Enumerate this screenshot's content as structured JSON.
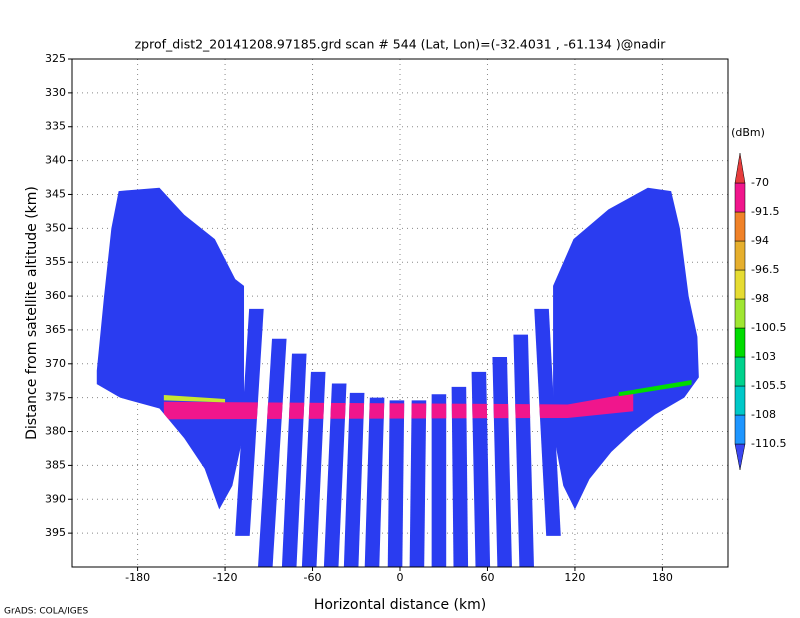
{
  "chart_data": {
    "type": "polygon-field",
    "title": "zprof_dist2_20141208.97185.grd  scan # 544  (Lat, Lon)=(-32.4031 , -61.134 )@nadir",
    "x_label": "Horizontal distance (km)",
    "y_label": "Distance from satellite altitude (km)",
    "credit": "GrADS: COLA/IGES",
    "xlim": [
      -225,
      225
    ],
    "xticks": [
      -180,
      -120,
      -60,
      0,
      60,
      120,
      180
    ],
    "ylim": [
      400,
      325
    ],
    "yticks": [
      325,
      330,
      335,
      340,
      345,
      350,
      355,
      360,
      365,
      370,
      375,
      380,
      385,
      390,
      395
    ],
    "grid": true,
    "regions": [
      {
        "color": "#2a3cf0",
        "x": [
          -208,
          -203,
          -198,
          -193,
          -165,
          -148,
          -127,
          -113,
          -107,
          -107,
          -115,
          -124,
          -134,
          -148,
          -165,
          -192,
          -208
        ],
        "y": [
          371,
          360,
          350,
          344.5,
          344,
          348,
          351.6,
          357.5,
          358.5,
          380,
          388,
          391.5,
          385.5,
          381,
          376.6,
          375,
          373
        ]
      },
      {
        "color": "#2a3cf0",
        "x": [
          105,
          119,
          143,
          170,
          186,
          192,
          198,
          204,
          205,
          195,
          175,
          160,
          145,
          130,
          120,
          112,
          105
        ],
        "y": [
          358.5,
          351.6,
          347.2,
          344,
          344.5,
          350,
          360,
          366,
          372,
          375,
          377.5,
          380,
          383,
          387,
          391.5,
          388,
          380
        ]
      },
      {
        "color": "#2a3cf0",
        "x": [
          -103.5,
          -93.5,
          -103.1,
          -113.1
        ],
        "y": [
          361.9,
          361.9,
          395.4,
          395.4
        ]
      },
      {
        "color": "#2a3cf0",
        "x": [
          -87.8,
          -77.8,
          -87.4,
          -97.4
        ],
        "y": [
          366.3,
          366.3,
          400,
          400
        ]
      },
      {
        "color": "#2a3cf0",
        "x": [
          -74.1,
          -64.1,
          -71,
          -81
        ],
        "y": [
          368.5,
          368.5,
          400,
          400
        ]
      },
      {
        "color": "#2a3cf0",
        "x": [
          -61.1,
          -51.1,
          -57.3,
          -67.3
        ],
        "y": [
          371.2,
          371.2,
          400,
          400
        ]
      },
      {
        "color": "#2a3cf0",
        "x": [
          -46.7,
          -36.7,
          -42.2,
          -52.2
        ],
        "y": [
          372.9,
          372.9,
          400,
          400
        ]
      },
      {
        "color": "#2a3cf0",
        "x": [
          -34.4,
          -24.4,
          -28.5,
          -38.5
        ],
        "y": [
          374.3,
          374.3,
          400,
          400
        ]
      },
      {
        "color": "#2a3cf0",
        "x": [
          -20.7,
          -10.7,
          -14.2,
          -24.2
        ],
        "y": [
          375,
          375,
          400,
          400
        ]
      },
      {
        "color": "#2a3cf0",
        "x": [
          -7.1,
          2.9,
          1.6,
          -8.4
        ],
        "y": [
          375.4,
          375.4,
          400,
          400
        ]
      },
      {
        "color": "#2a3cf0",
        "x": [
          8,
          18,
          16.6,
          6.6
        ],
        "y": [
          375.4,
          375.4,
          400,
          400
        ]
      },
      {
        "color": "#2a3cf0",
        "x": [
          21.7,
          31.7,
          31.7,
          21.7
        ],
        "y": [
          374.5,
          374.5,
          400,
          400
        ]
      },
      {
        "color": "#2a3cf0",
        "x": [
          35.4,
          45.4,
          46.7,
          36.7
        ],
        "y": [
          373.4,
          373.4,
          400,
          400
        ]
      },
      {
        "color": "#2a3cf0",
        "x": [
          49.1,
          59.1,
          61.8,
          51.8
        ],
        "y": [
          371.2,
          371.2,
          400,
          400
        ]
      },
      {
        "color": "#2a3cf0",
        "x": [
          63.4,
          73.4,
          76.8,
          66.8
        ],
        "y": [
          369,
          369,
          400,
          400
        ]
      },
      {
        "color": "#2a3cf0",
        "x": [
          77.8,
          87.8,
          91.9,
          81.9
        ],
        "y": [
          365.7,
          365.7,
          400,
          400
        ]
      },
      {
        "color": "#2a3cf0",
        "x": [
          92.1,
          102.1,
          110.3,
          100.3
        ],
        "y": [
          361.9,
          361.9,
          395.4,
          395.4
        ]
      }
    ],
    "bands": [
      {
        "color": "#f0168c",
        "x": [
          -162,
          115,
          160,
          160,
          115,
          -162
        ],
        "y": [
          375.6,
          376,
          374.3,
          377,
          378,
          378.2
        ]
      },
      {
        "color": "#c8e632",
        "x": [
          -162,
          -120,
          -120,
          -162
        ],
        "y": [
          374.6,
          375.2,
          375.7,
          375.4
        ]
      },
      {
        "color": "#00dc00",
        "x": [
          150,
          200,
          200,
          150
        ],
        "y": [
          374.2,
          372.4,
          373.1,
          374.8
        ]
      }
    ],
    "colorbar": {
      "unit": "(dBm)",
      "levels": [
        -110.5,
        -108,
        -105.5,
        -103,
        -100.5,
        -98,
        -96.5,
        -94,
        -91.5,
        -70
      ],
      "colors": [
        "#3a46f0",
        "#1e96ff",
        "#00c8c8",
        "#00d28c",
        "#00dc00",
        "#a0e632",
        "#e6dc32",
        "#e6af2d",
        "#f08228",
        "#f0168c",
        "#e63c3c"
      ]
    }
  }
}
